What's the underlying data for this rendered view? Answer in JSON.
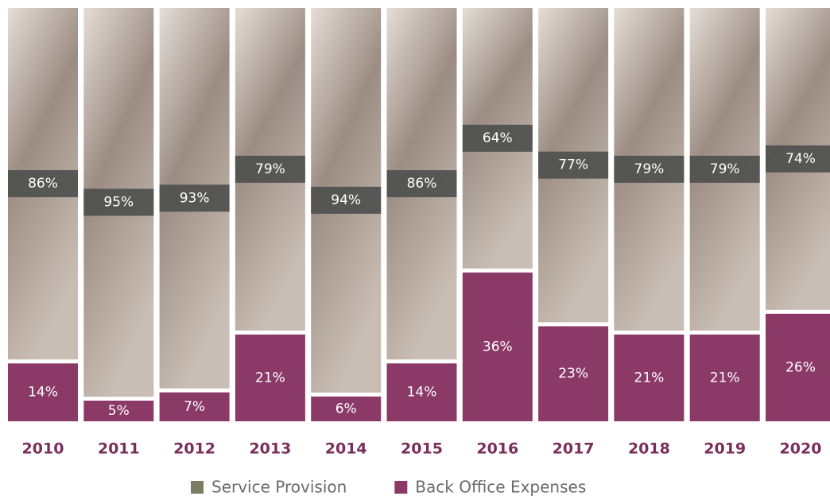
{
  "chart_data": {
    "type": "bar",
    "stacked": true,
    "categories": [
      "2010",
      "2011",
      "2012",
      "2013",
      "2014",
      "2015",
      "2016",
      "2017",
      "2018",
      "2019",
      "2020"
    ],
    "series": [
      {
        "name": "Back Office Expenses",
        "color": "#8b3a67",
        "values": [
          14,
          5,
          7,
          21,
          6,
          14,
          36,
          23,
          21,
          21,
          26
        ],
        "value_labels": [
          "14%",
          "5%",
          "7%",
          "21%",
          "6%",
          "14%",
          "36%",
          "23%",
          "21%",
          "21%",
          "26%"
        ]
      },
      {
        "name": "Service Provision",
        "color": "#7b7c62",
        "values": [
          86,
          95,
          93,
          79,
          94,
          86,
          64,
          77,
          79,
          79,
          74
        ],
        "value_labels": [
          "86%",
          "95%",
          "93%",
          "79%",
          "94%",
          "86%",
          "64%",
          "77%",
          "79%",
          "79%",
          "74%"
        ]
      }
    ],
    "legend": "bottom"
  }
}
